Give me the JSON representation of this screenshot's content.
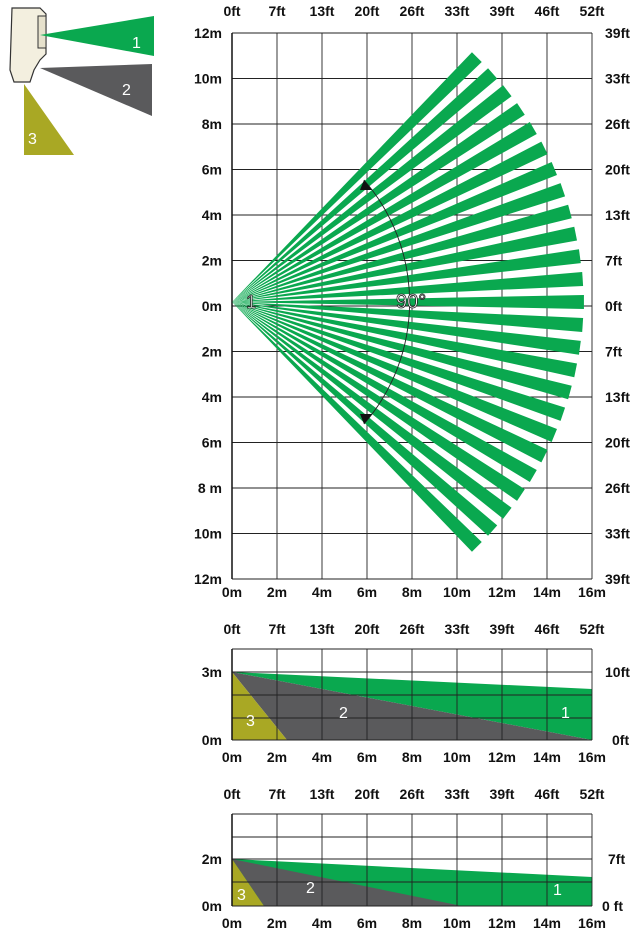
{
  "colors": {
    "zone1": "#0aa84f",
    "zone2": "#5a5a5c",
    "zone3": "#a9a824",
    "grid": "#222222",
    "sensor": "#f3efdf"
  },
  "legend": {
    "zone1": "1",
    "zone2": "2",
    "zone3": "3"
  },
  "top_view": {
    "top_axis": [
      "0ft",
      "7ft",
      "13ft",
      "20ft",
      "26ft",
      "33ft",
      "39ft",
      "46ft",
      "52ft"
    ],
    "left_axis": [
      "12m",
      "10m",
      "8m",
      "6m",
      "4m",
      "2m",
      "0m",
      "2m",
      "4m",
      "6m",
      "8 m",
      "10m",
      "12m"
    ],
    "right_axis": [
      "39ft",
      "33ft",
      "26ft",
      "20ft",
      "13ft",
      "7ft",
      "0ft",
      "7ft",
      "13ft",
      "20ft",
      "26ft",
      "33ft",
      "39ft"
    ],
    "bottom_axis": [
      "0m",
      "2m",
      "4m",
      "6m",
      "8m",
      "10m",
      "12m",
      "14m",
      "16m"
    ],
    "zone_label": "1",
    "angle_label": "90°"
  },
  "side_view_1": {
    "top_axis": [
      "0ft",
      "7ft",
      "13ft",
      "20ft",
      "26ft",
      "33ft",
      "39ft",
      "46ft",
      "52ft"
    ],
    "left_axis": [
      "3m",
      "0m"
    ],
    "right_axis": [
      "10ft",
      "0ft"
    ],
    "bottom_axis": [
      "0m",
      "2m",
      "4m",
      "6m",
      "8m",
      "10m",
      "12m",
      "14m",
      "16m"
    ],
    "zone_labels": {
      "z1": "1",
      "z2": "2",
      "z3": "3"
    }
  },
  "side_view_2": {
    "top_axis": [
      "0ft",
      "7ft",
      "13ft",
      "20ft",
      "26ft",
      "33ft",
      "39ft",
      "46ft",
      "52ft"
    ],
    "left_axis": [
      "2m",
      "0m"
    ],
    "right_axis": [
      "7ft",
      "0 ft"
    ],
    "bottom_axis": [
      "0m",
      "2m",
      "4m",
      "6m",
      "8m",
      "10m",
      "12m",
      "14m",
      "16m"
    ],
    "zone_labels": {
      "z1": "1",
      "z2": "2",
      "z3": "3"
    }
  }
}
